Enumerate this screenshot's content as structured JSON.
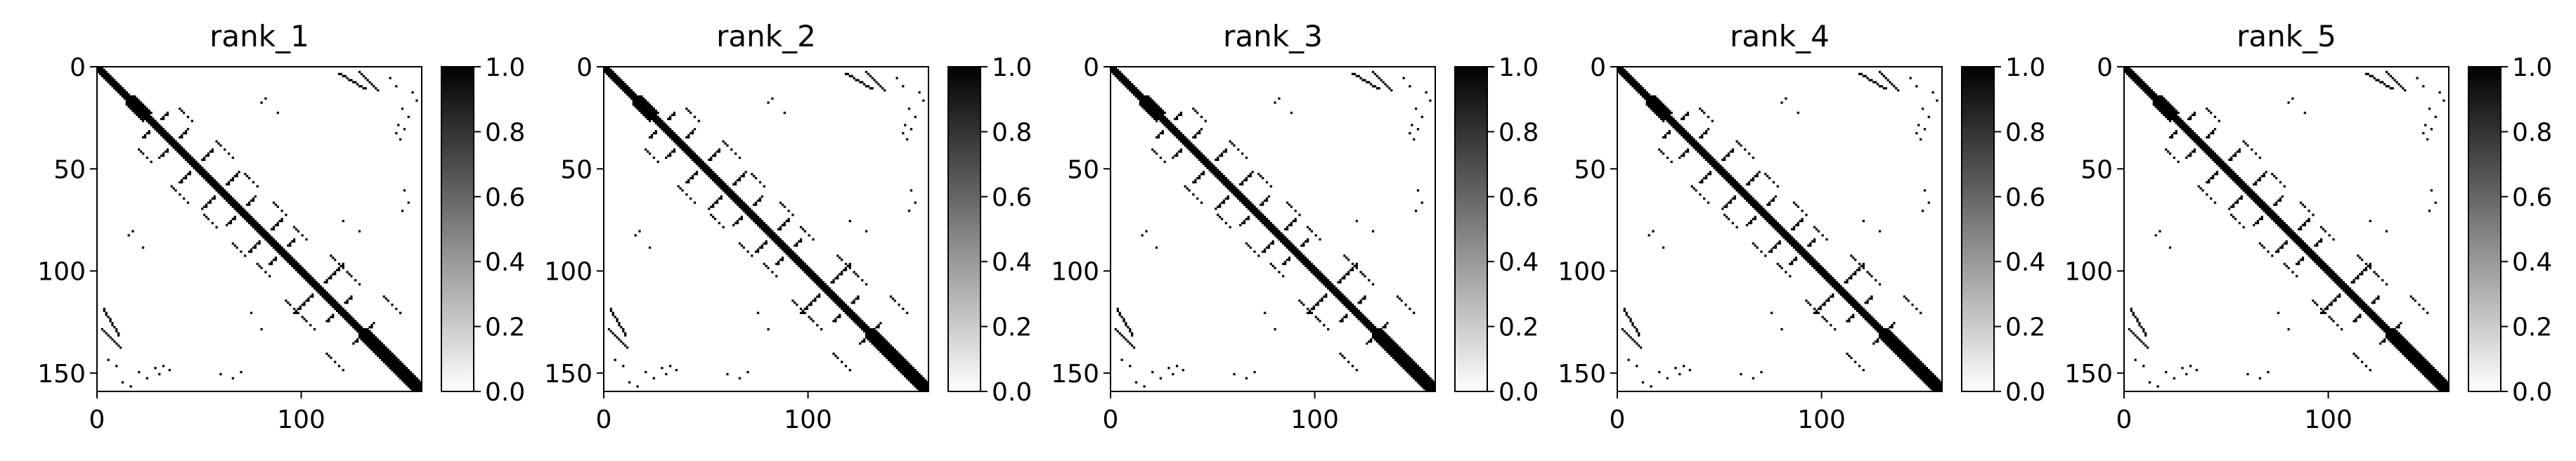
{
  "chart_data": [
    {
      "type": "heatmap",
      "title": "rank_1",
      "xlabel": "",
      "ylabel": "",
      "x_ticks": [
        "0",
        "100"
      ],
      "y_ticks": [
        "0",
        "50",
        "100",
        "150"
      ],
      "xlim": [
        0,
        159
      ],
      "ylim": [
        159,
        0
      ],
      "matrix_size": 159,
      "colormap": "gray_r",
      "colorbar": {
        "range": [
          0.0,
          1.0
        ],
        "ticks": [
          "0.0",
          "0.2",
          "0.4",
          "0.6",
          "0.8",
          "1.0"
        ]
      },
      "description": "symmetric contact map: thick main diagonal plus short off-diagonal spikes and sparse distant contacts"
    },
    {
      "type": "heatmap",
      "title": "rank_2",
      "xlabel": "",
      "ylabel": "",
      "x_ticks": [
        "0",
        "100"
      ],
      "y_ticks": [
        "0",
        "50",
        "100",
        "150"
      ],
      "xlim": [
        0,
        159
      ],
      "ylim": [
        159,
        0
      ],
      "matrix_size": 159,
      "colormap": "gray_r",
      "colorbar": {
        "range": [
          0.0,
          1.0
        ],
        "ticks": [
          "0.0",
          "0.2",
          "0.4",
          "0.6",
          "0.8",
          "1.0"
        ]
      },
      "description": "symmetric contact map: thick main diagonal plus short off-diagonal spikes and sparse distant contacts"
    },
    {
      "type": "heatmap",
      "title": "rank_3",
      "xlabel": "",
      "ylabel": "",
      "x_ticks": [
        "0",
        "100"
      ],
      "y_ticks": [
        "0",
        "50",
        "100",
        "150"
      ],
      "xlim": [
        0,
        159
      ],
      "ylim": [
        159,
        0
      ],
      "matrix_size": 159,
      "colormap": "gray_r",
      "colorbar": {
        "range": [
          0.0,
          1.0
        ],
        "ticks": [
          "0.0",
          "0.2",
          "0.4",
          "0.6",
          "0.8",
          "1.0"
        ]
      },
      "description": "symmetric contact map: thick main diagonal plus short off-diagonal spikes and sparse distant contacts"
    },
    {
      "type": "heatmap",
      "title": "rank_4",
      "xlabel": "",
      "ylabel": "",
      "x_ticks": [
        "0",
        "100"
      ],
      "y_ticks": [
        "0",
        "50",
        "100",
        "150"
      ],
      "xlim": [
        0,
        159
      ],
      "ylim": [
        159,
        0
      ],
      "matrix_size": 159,
      "colormap": "gray_r",
      "colorbar": {
        "range": [
          0.0,
          1.0
        ],
        "ticks": [
          "0.0",
          "0.2",
          "0.4",
          "0.6",
          "0.8",
          "1.0"
        ]
      },
      "description": "symmetric contact map: thick main diagonal plus short off-diagonal spikes and sparse distant contacts"
    },
    {
      "type": "heatmap",
      "title": "rank_5",
      "xlabel": "",
      "ylabel": "",
      "x_ticks": [
        "0",
        "100"
      ],
      "y_ticks": [
        "0",
        "50",
        "100",
        "150"
      ],
      "xlim": [
        0,
        159
      ],
      "ylim": [
        159,
        0
      ],
      "matrix_size": 159,
      "colormap": "gray_r",
      "colorbar": {
        "range": [
          0.0,
          1.0
        ],
        "ticks": [
          "0.0",
          "0.2",
          "0.4",
          "0.6",
          "0.8",
          "1.0"
        ]
      },
      "description": "symmetric contact map: thick main diagonal plus short off-diagonal spikes and sparse distant contacts"
    }
  ]
}
